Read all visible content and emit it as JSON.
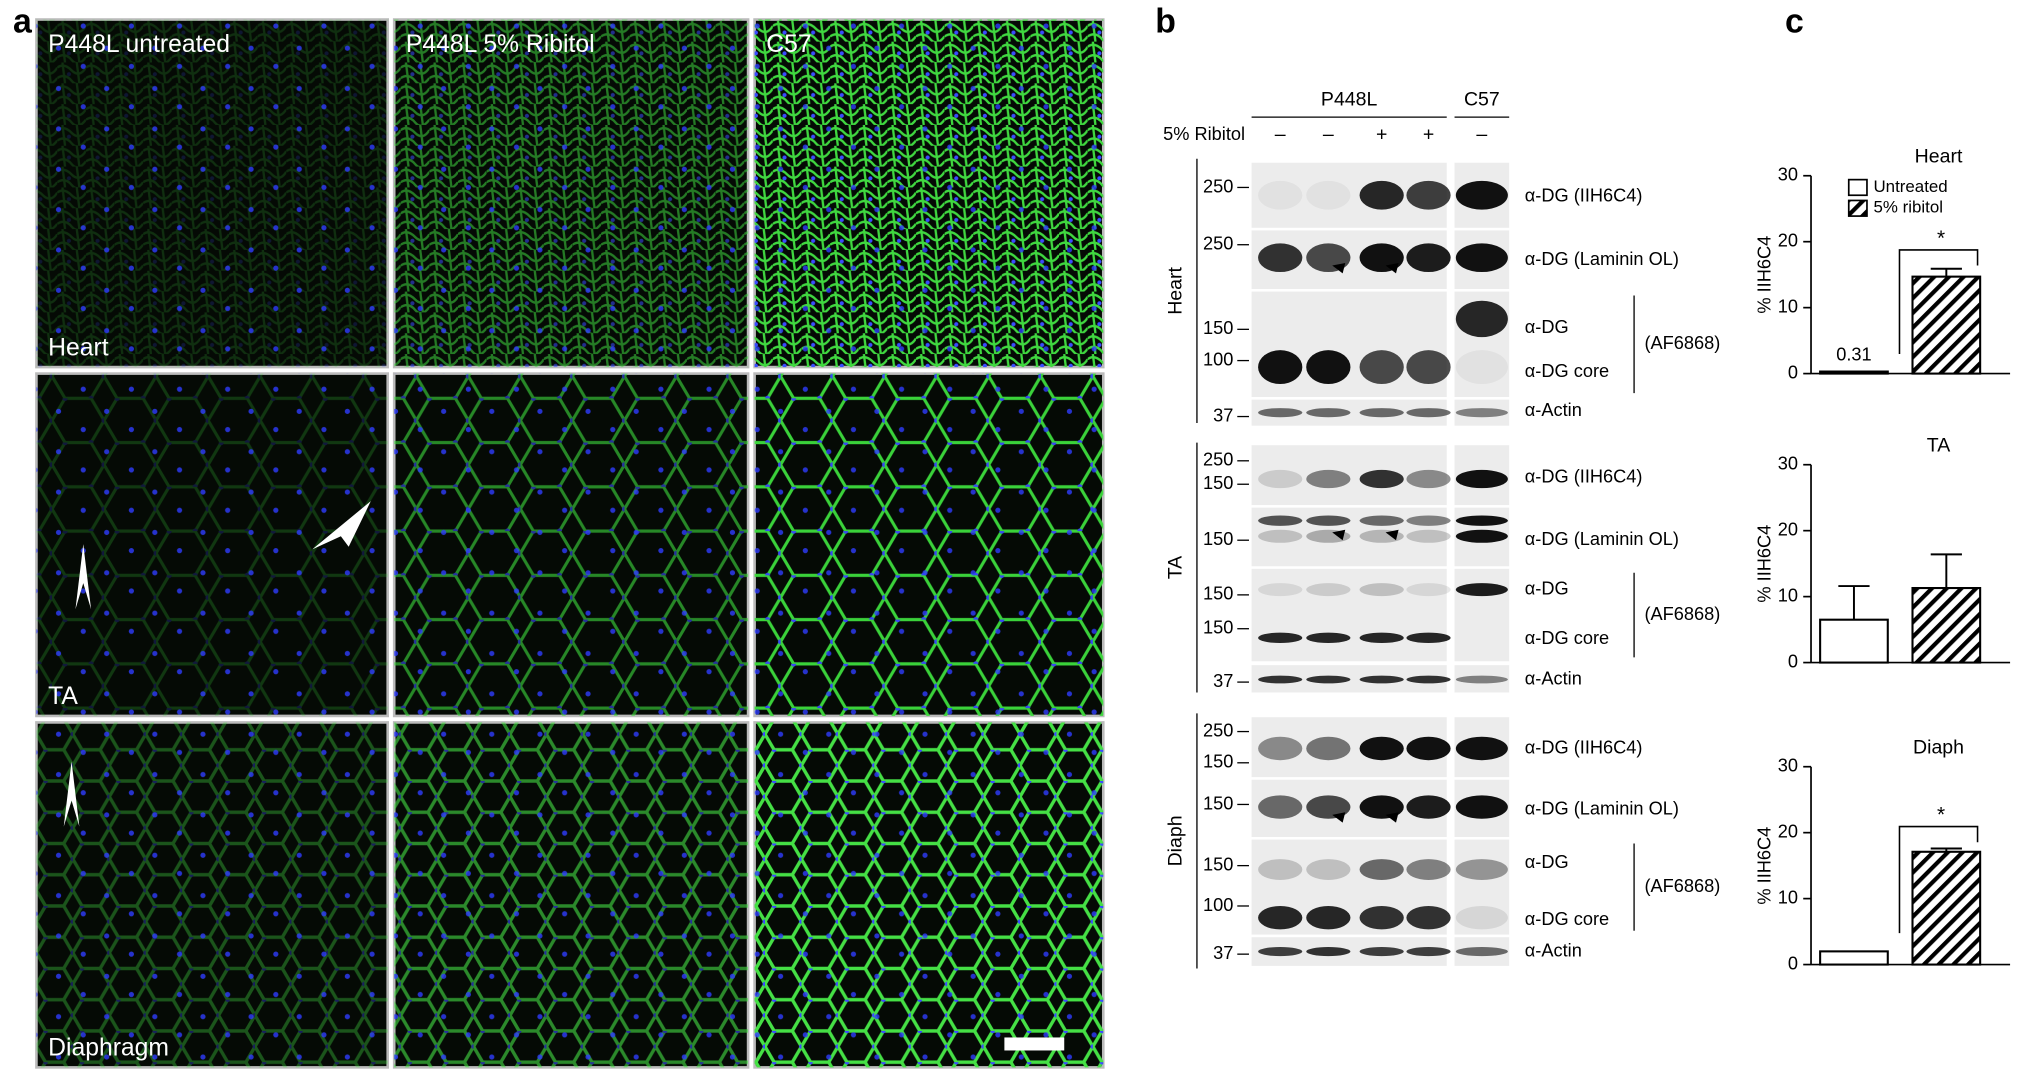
{
  "panels": {
    "a": {
      "label": "a",
      "columns": [
        "P448L untreated",
        "P448L 5% Ribitol",
        "C57"
      ],
      "rows": [
        "Heart",
        "TA",
        "Diaphragm"
      ]
    },
    "b": {
      "label": "b",
      "groups": [
        "P448L",
        "C57"
      ],
      "treatment": "5% Ribitol",
      "lanes": [
        "–",
        "–",
        "+",
        "+",
        "–"
      ],
      "tissues": [
        {
          "name": "Heart",
          "blots": [
            {
              "label": "α-DG (IIH6C4)",
              "markers": [
                250
              ]
            },
            {
              "label": "α-DG (Laminin OL)",
              "markers": [
                250
              ]
            },
            {
              "labels": [
                "α-DG",
                "α-DG core"
              ],
              "antibody": "(AF6868)",
              "markers": [
                150,
                100
              ]
            },
            {
              "label": "α-Actin",
              "markers": [
                37
              ]
            }
          ]
        },
        {
          "name": "TA",
          "blots": [
            {
              "label": "α-DG (IIH6C4)",
              "markers": [
                250,
                150
              ]
            },
            {
              "label": "α-DG (Laminin OL)",
              "markers": [
                150
              ]
            },
            {
              "labels": [
                "α-DG",
                "α-DG core"
              ],
              "antibody": "(AF6868)",
              "markers": [
                150,
                150
              ]
            },
            {
              "label": "α-Actin",
              "markers": [
                37
              ]
            }
          ]
        },
        {
          "name": "Diaph",
          "blots": [
            {
              "label": "α-DG (IIH6C4)",
              "markers": [
                250,
                150
              ]
            },
            {
              "label": "α-DG (Laminin OL)",
              "markers": [
                150
              ]
            },
            {
              "labels": [
                "α-DG",
                "α-DG core"
              ],
              "antibody": "(AF6868)",
              "markers": [
                150,
                100
              ]
            },
            {
              "label": "α-Actin",
              "markers": [
                37
              ]
            }
          ]
        }
      ]
    },
    "c": {
      "label": "c",
      "charts": [
        {
          "type": "bar",
          "title": "Heart",
          "ylabel": "% IIH6C4",
          "ylim": [
            0,
            30
          ],
          "yticks": [
            0,
            10,
            20,
            30
          ],
          "categories": [
            null
          ],
          "legend": "upper left",
          "series": [
            {
              "name": "Untreated",
              "color": "#ffffff",
              "values": [
                0.31
              ],
              "errors": [
                null
              ]
            },
            {
              "name": "5% ribitol",
              "color": "#000000",
              "pattern": "hatch",
              "values": [
                14.7
              ],
              "errors": [
                1.2
              ]
            }
          ],
          "annotations": [
            "*"
          ]
        },
        {
          "type": "bar",
          "title": "TA",
          "ylabel": "% IIH6C4",
          "ylim": [
            0,
            30
          ],
          "yticks": [
            0,
            10,
            20,
            30
          ],
          "categories": [
            null
          ],
          "series": [
            {
              "color": "#ffffff",
              "values": [
                6.5
              ],
              "errors": [
                5.1
              ]
            },
            {
              "color": "#000000",
              "pattern": "hatch",
              "values": [
                11.3
              ],
              "errors": [
                5.1
              ]
            }
          ]
        },
        {
          "type": "bar",
          "title": "Diaph",
          "ylabel": "% IIH6C4",
          "ylim": [
            0,
            30
          ],
          "yticks": [
            0,
            10,
            20,
            30
          ],
          "categories": [
            null
          ],
          "series": [
            {
              "color": "#ffffff",
              "values": [
                2.0
              ],
              "errors": [
                null
              ]
            },
            {
              "color": "#000000",
              "pattern": "hatch",
              "values": [
                17.1
              ],
              "errors": [
                0.5
              ]
            }
          ],
          "annotations": [
            "*"
          ]
        }
      ]
    }
  }
}
